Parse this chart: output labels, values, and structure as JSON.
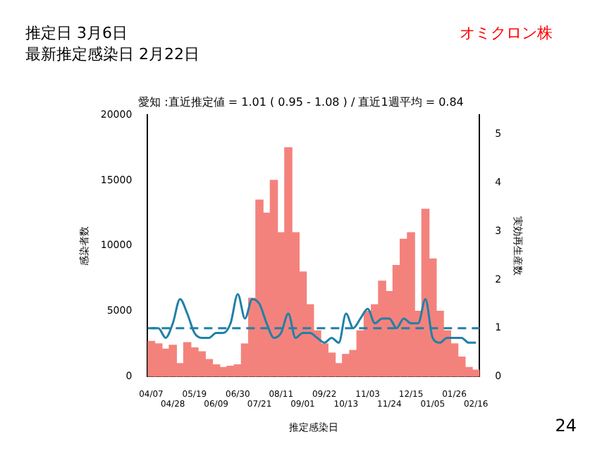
{
  "chart_data": {
    "type": "bar",
    "title": "愛知 :直近推定値 = 1.01 ( 0.95 - 1.08 ) / 直近1週平均 = 0.84",
    "xlabel": "推定感染日",
    "ylabel": "感染者数",
    "y2label": "実効再生産数",
    "annotations": [
      "推定日  3月6日",
      "最新推定感染日  2月22日",
      "オミクロン株",
      "24"
    ],
    "categories": [
      "04/07",
      null,
      null,
      "04/28",
      null,
      null,
      "05/19",
      null,
      null,
      "06/09",
      null,
      null,
      "06/30",
      null,
      null,
      "07/21",
      null,
      null,
      "08/11",
      null,
      null,
      "09/01",
      null,
      null,
      "09/22",
      null,
      null,
      "10/13",
      null,
      null,
      "11/03",
      null,
      null,
      "11/24",
      null,
      null,
      "12/15",
      null,
      null,
      "01/05",
      null,
      null,
      "01/26",
      null,
      null,
      "02/16"
    ],
    "series": [
      {
        "color": "#f4827c",
        "values": [
          2700,
          2500,
          2100,
          2400,
          1000,
          2600,
          2200,
          1900,
          1300,
          900,
          700,
          800,
          900,
          2500,
          6000,
          13500,
          12500,
          15000,
          11000,
          17500,
          11000,
          8000,
          5500,
          3500,
          2500,
          1800,
          1000,
          1700,
          2000,
          3500,
          5000,
          5500,
          7300,
          6500,
          8500,
          10500,
          11000,
          5000,
          12800,
          9000,
          5000,
          3500,
          2500,
          1500,
          700,
          500
        ]
      },
      {
        "type": "line",
        "axis": "y2",
        "color": "#2080a8",
        "values": [
          1.0,
          1.0,
          0.8,
          1.1,
          1.6,
          1.3,
          0.9,
          0.8,
          0.8,
          0.9,
          0.9,
          1.1,
          1.7,
          1.2,
          1.6,
          1.5,
          1.1,
          0.8,
          0.9,
          1.3,
          0.8,
          0.9,
          0.9,
          0.8,
          0.7,
          0.8,
          0.7,
          1.3,
          1.0,
          1.2,
          1.4,
          1.1,
          1.2,
          1.2,
          1.0,
          1.2,
          1.1,
          1.1,
          1.6,
          0.8,
          0.7,
          0.8,
          0.8,
          0.8,
          0.7,
          0.7
        ]
      }
    ],
    "ylim": [
      0,
      20000
    ],
    "yticks": [
      0,
      5000,
      10000,
      15000,
      20000
    ],
    "y2lim": [
      0,
      5.4
    ],
    "y2ticks": [
      0,
      1,
      2,
      3,
      4,
      5
    ],
    "ref_lines": [
      {
        "axis": "y2",
        "value": 1,
        "color": "#2080a8",
        "line_style": "dashed"
      }
    ]
  }
}
